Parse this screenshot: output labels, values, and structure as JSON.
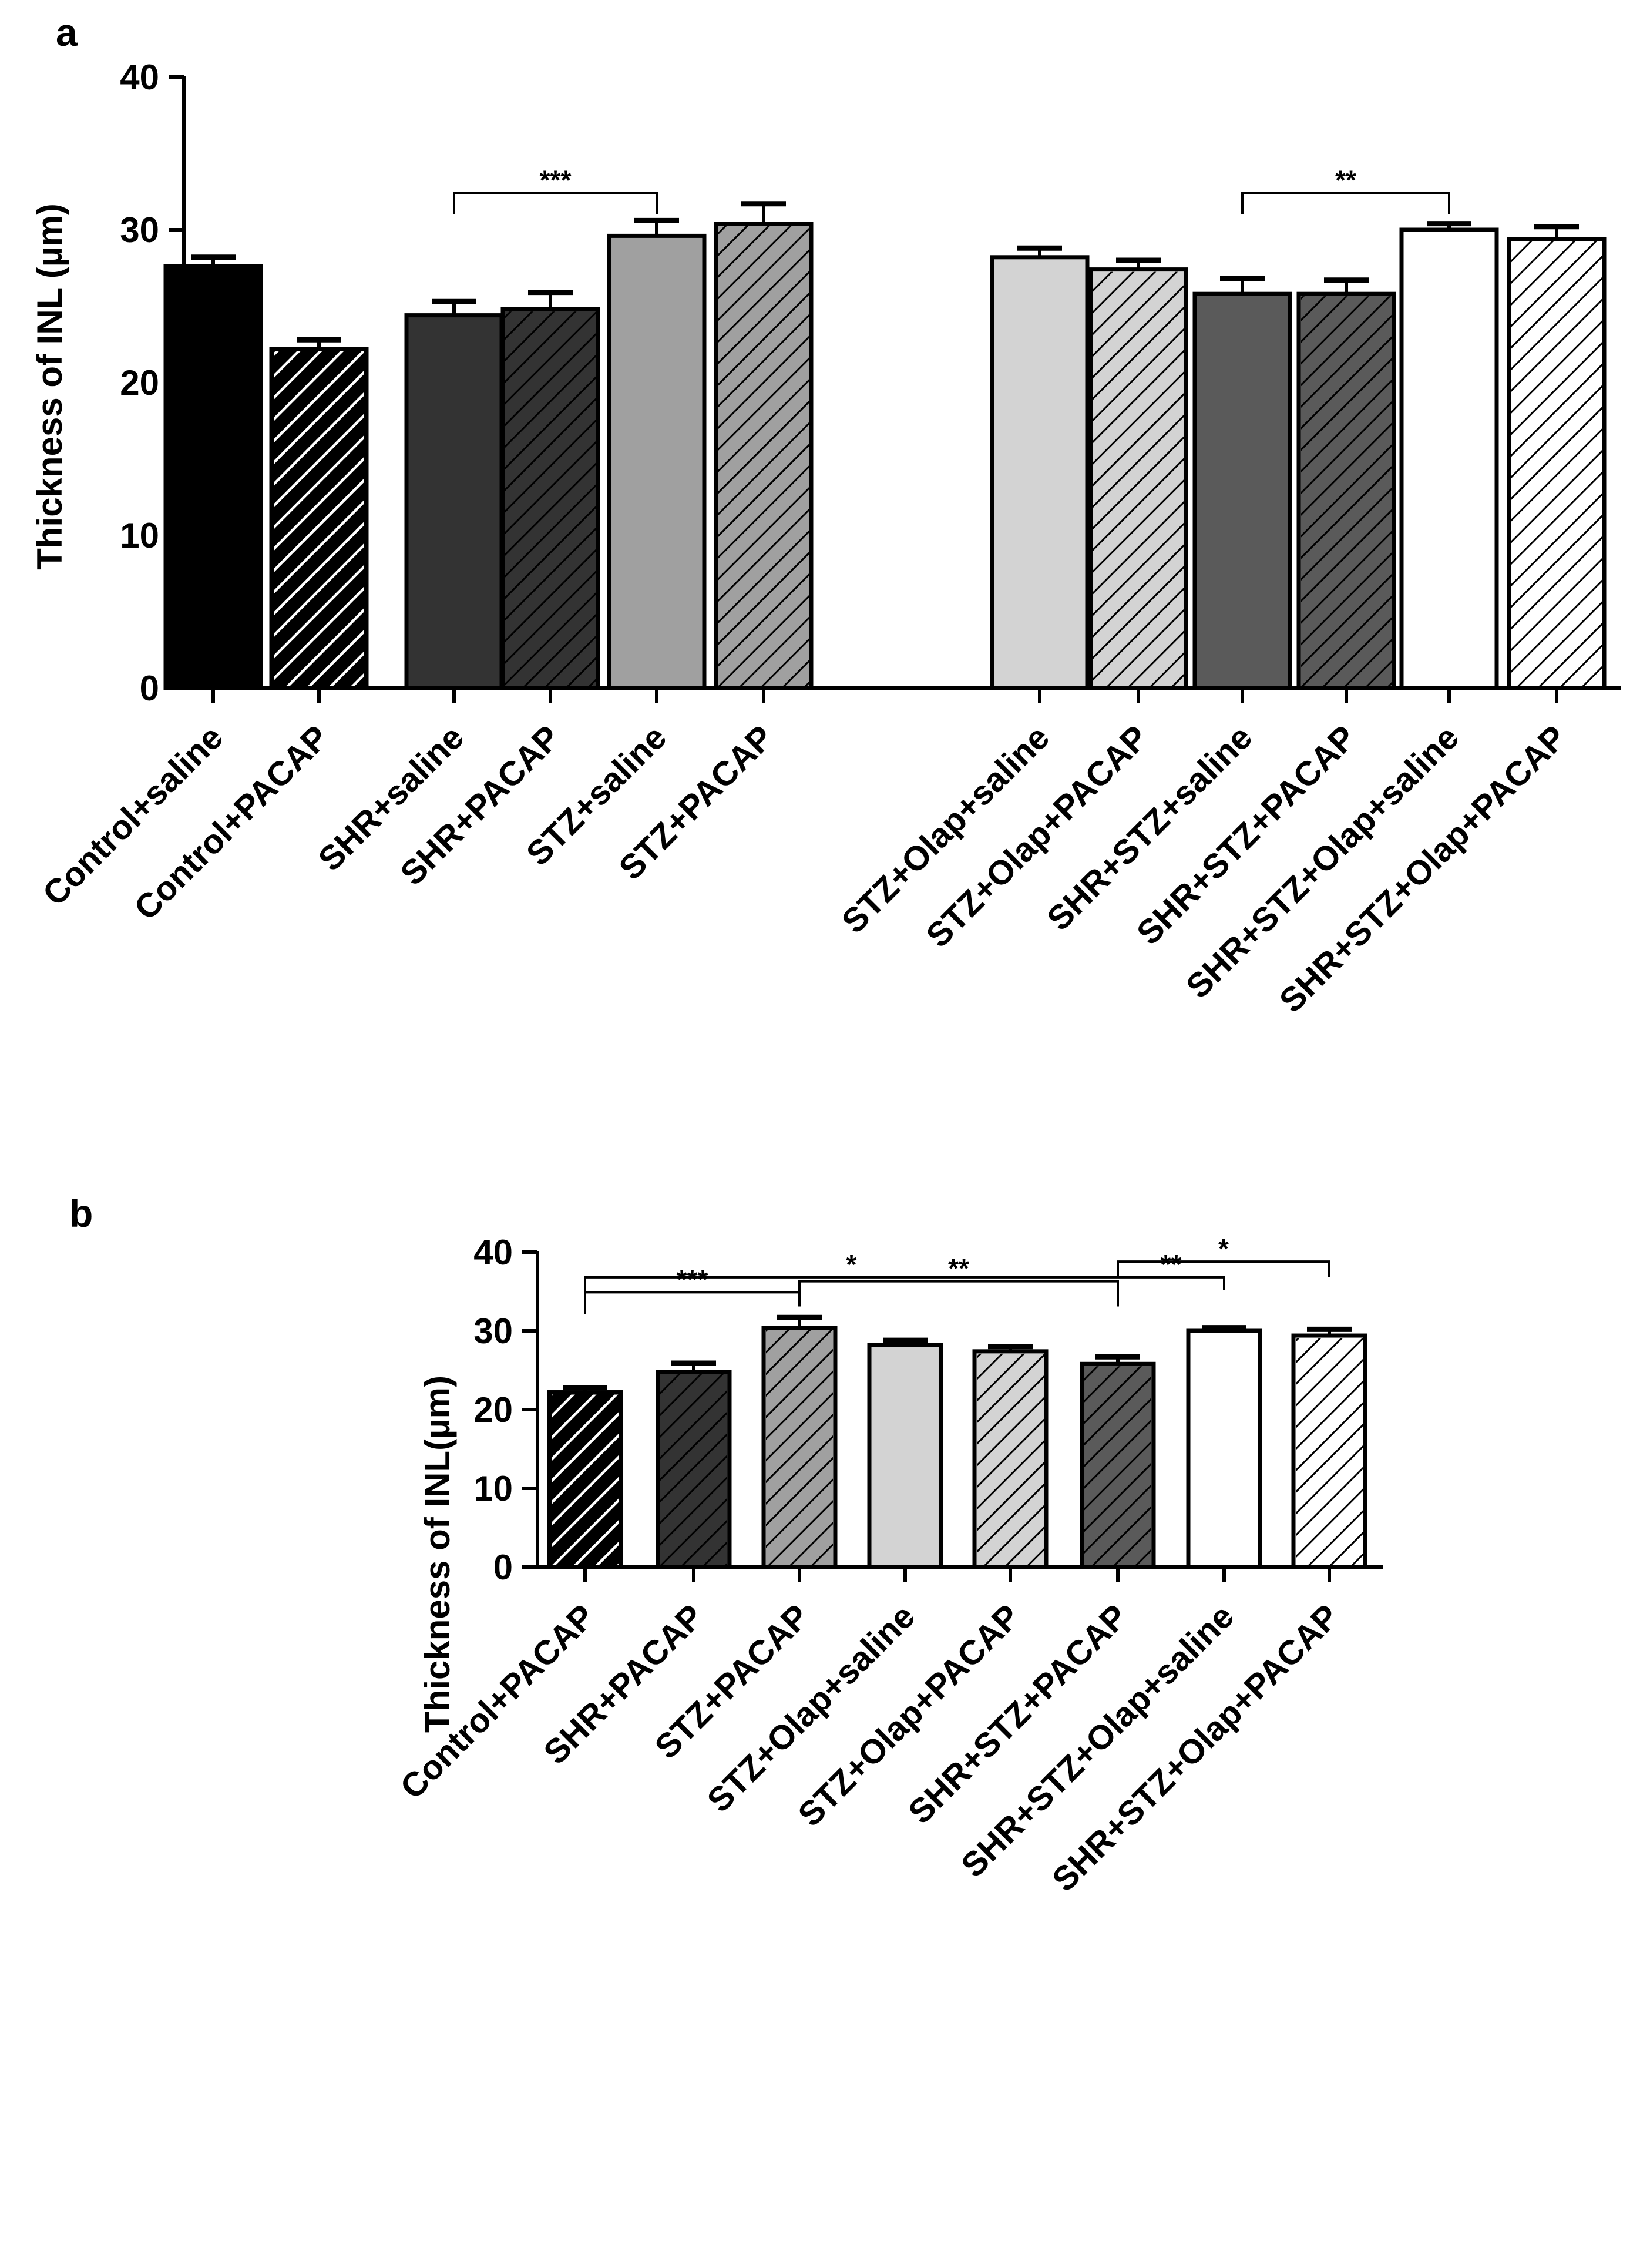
{
  "chart_data": [
    {
      "panel_label": "a",
      "type": "bar",
      "ylabel": "Thickness of INL (µm)",
      "ylim": [
        0,
        40
      ],
      "yticks": [
        0,
        10,
        20,
        30,
        40
      ],
      "bars": [
        {
          "category": "Control+saline",
          "value": 27.6,
          "error": 0.6,
          "color": "#000000",
          "hatch": "none"
        },
        {
          "category": "Control+PACAP",
          "value": 22.2,
          "error": 0.6,
          "color": "#000000",
          "hatch": "white"
        },
        {
          "category": "SHR+saline",
          "value": 24.4,
          "error": 0.9,
          "color": "#333333",
          "hatch": "none"
        },
        {
          "category": "SHR+PACAP",
          "value": 24.8,
          "error": 1.1,
          "color": "#333333",
          "hatch": "black"
        },
        {
          "category": "STZ+saline",
          "value": 29.6,
          "error": 1.0,
          "color": "#a0a0a0",
          "hatch": "none"
        },
        {
          "category": "STZ+PACAP",
          "value": 30.4,
          "error": 1.3,
          "color": "#a0a0a0",
          "hatch": "black"
        },
        {
          "category": "STZ+Olap+saline",
          "value": 28.2,
          "error": 0.6,
          "color": "#d3d3d3",
          "hatch": "none"
        },
        {
          "category": "STZ+Olap+PACAP",
          "value": 27.4,
          "error": 0.6,
          "color": "#d3d3d3",
          "hatch": "black"
        },
        {
          "category": "SHR+STZ+saline",
          "value": 25.8,
          "error": 1.0,
          "color": "#5a5a5a",
          "hatch": "none"
        },
        {
          "category": "SHR+STZ+PACAP",
          "value": 25.8,
          "error": 0.9,
          "color": "#5a5a5a",
          "hatch": "black"
        },
        {
          "category": "SHR+STZ+Olap+saline",
          "value": 30.0,
          "error": 0.4,
          "color": "#ffffff",
          "hatch": "none"
        },
        {
          "category": "SHR+STZ+Olap+PACAP",
          "value": 29.4,
          "error": 0.8,
          "color": "#ffffff",
          "hatch": "black"
        }
      ],
      "significance": [
        {
          "from": "SHR+saline",
          "to": "STZ+saline",
          "level": 32.4,
          "drop_right": 31.0,
          "label": "***"
        },
        {
          "from": "SHR+STZ+saline",
          "to": "SHR+STZ+Olap+saline",
          "level": 32.4,
          "drop_right": 31.0,
          "label": "**"
        }
      ]
    },
    {
      "panel_label": "b",
      "type": "bar",
      "ylabel": "Thickness of INL(µm)",
      "ylim": [
        0,
        40
      ],
      "yticks": [
        0,
        10,
        20,
        30,
        40
      ],
      "bars": [
        {
          "category": "Control+PACAP",
          "value": 22.2,
          "error": 0.6,
          "color": "#000000",
          "hatch": "white"
        },
        {
          "category": "SHR+PACAP",
          "value": 24.8,
          "error": 1.1,
          "color": "#333333",
          "hatch": "black"
        },
        {
          "category": "STZ+PACAP",
          "value": 30.4,
          "error": 1.3,
          "color": "#a0a0a0",
          "hatch": "black"
        },
        {
          "category": "STZ+Olap+saline",
          "value": 28.2,
          "error": 0.6,
          "color": "#d3d3d3",
          "hatch": "none"
        },
        {
          "category": "STZ+Olap+PACAP",
          "value": 27.4,
          "error": 0.6,
          "color": "#d3d3d3",
          "hatch": "black"
        },
        {
          "category": "SHR+STZ+PACAP",
          "value": 25.8,
          "error": 0.9,
          "color": "#5a5a5a",
          "hatch": "black"
        },
        {
          "category": "SHR+STZ+Olap+saline",
          "value": 30.0,
          "error": 0.4,
          "color": "#ffffff",
          "hatch": "none"
        },
        {
          "category": "SHR+STZ+Olap+PACAP",
          "value": 29.4,
          "error": 0.8,
          "color": "#ffffff",
          "hatch": "black"
        }
      ],
      "significance": [
        {
          "from": "Control+PACAP",
          "to": "SHR+STZ+PACAP",
          "level": 36.8,
          "drop_left": 34.9,
          "drop_right": 36.8,
          "label": "*"
        },
        {
          "from": "SHR+STZ+PACAP",
          "to": "SHR+STZ+Olap+PACAP",
          "level": 38.8,
          "drop_left": 36.8,
          "drop_right": 36.8,
          "label": "*"
        },
        {
          "from": "Control+PACAP",
          "to": "STZ+PACAP",
          "level": 34.9,
          "drop_left": 32.1,
          "drop_right": 33.1,
          "label": "***"
        },
        {
          "from": "STZ+PACAP",
          "to": "SHR+STZ+PACAP",
          "level": 36.3,
          "drop_left": 34.9,
          "drop_right": 33.1,
          "label": "**"
        },
        {
          "from": "SHR+STZ+PACAP",
          "to": "SHR+STZ+Olap+saline",
          "level": 36.8,
          "drop_left": 36.8,
          "drop_right": 35.2,
          "label": "**"
        }
      ]
    }
  ]
}
